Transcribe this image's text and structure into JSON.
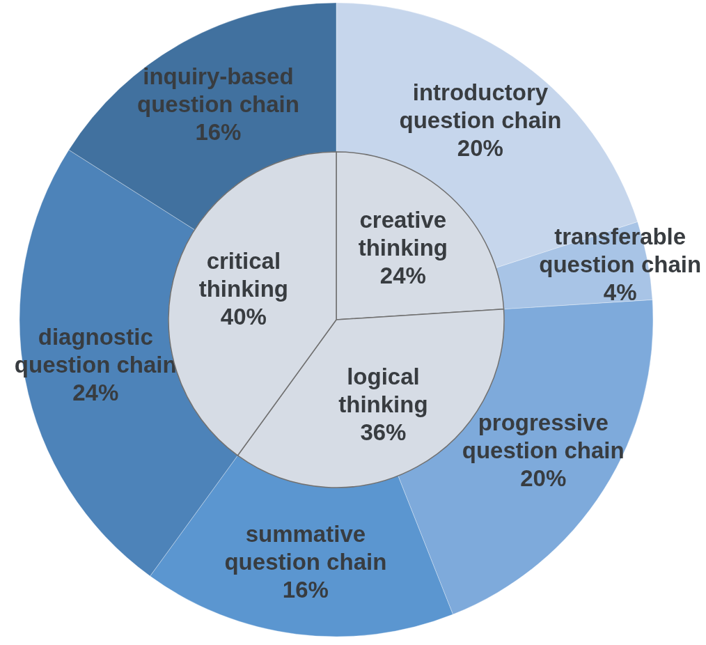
{
  "chart_data": [
    {
      "type": "pie",
      "categories": [
        "creative thinking",
        "logical thinking",
        "critical thinking"
      ],
      "values": [
        24,
        36,
        40
      ],
      "colors": [
        "#d6dce5",
        "#d6dce5",
        "#d6dce5"
      ],
      "value_labels": [
        "24%",
        "36%",
        "40%"
      ]
    },
    {
      "type": "donut",
      "categories": [
        "introductory question chain",
        "transferable question chain",
        "progressive question chain",
        "summative question chain",
        "diagnostic question chain",
        "inquiry-based question chain"
      ],
      "values": [
        20,
        4,
        20,
        16,
        24,
        16
      ],
      "colors": [
        "#c6d6ec",
        "#a8c4e6",
        "#7eaadb",
        "#5b96d0",
        "#4d83b9",
        "#41719f"
      ],
      "value_labels": [
        "20%",
        "4%",
        "20%",
        "16%",
        "24%",
        "16%"
      ]
    }
  ]
}
